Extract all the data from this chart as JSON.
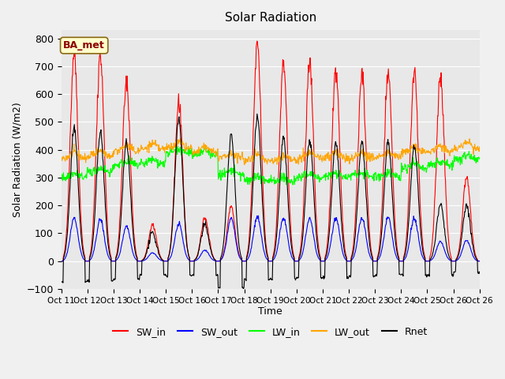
{
  "title": "Solar Radiation",
  "ylabel": "Solar Radiation (W/m2)",
  "xlabel": "Time",
  "ylim": [
    -100,
    830
  ],
  "bg_color": "#e8e8e8",
  "fig_bg": "#f0f0f0",
  "legend_items": [
    "SW_in",
    "SW_out",
    "LW_in",
    "LW_out",
    "Rnet"
  ],
  "legend_colors": [
    "#ff0000",
    "#0000ff",
    "#00ff00",
    "#ffa500",
    "#000000"
  ],
  "annotation": "BA_met",
  "xtick_labels": [
    "Oct 11",
    "Oct 12",
    "Oct 13",
    "Oct 14",
    "Oct 15",
    "Oct 16",
    "Oct 17",
    "Oct 18",
    "Oct 19",
    "Oct 20",
    "Oct 21",
    "Oct 22",
    "Oct 23",
    "Oct 24",
    "Oct 25",
    "Oct 26"
  ],
  "n_days": 16,
  "pts_per_day": 60,
  "sw_in_peaks": [
    750,
    735,
    645,
    130,
    565,
    155,
    195,
    775,
    710,
    705,
    695,
    675,
    680,
    675,
    660,
    300
  ],
  "sw_out_peaks": [
    155,
    150,
    125,
    30,
    135,
    40,
    155,
    160,
    155,
    155,
    155,
    155,
    155,
    155,
    70,
    75
  ],
  "lw_in_base": [
    300,
    320,
    345,
    350,
    390,
    380,
    310,
    290,
    285,
    300,
    305,
    305,
    305,
    335,
    345,
    365
  ],
  "lw_out_base": [
    370,
    380,
    395,
    400,
    405,
    390,
    370,
    360,
    360,
    370,
    370,
    370,
    375,
    390,
    395,
    405
  ],
  "rnet_peaks": [
    480,
    465,
    425,
    100,
    510,
    130,
    450,
    520,
    445,
    435,
    425,
    425,
    430,
    415,
    200,
    200
  ],
  "rnet_night": [
    -75,
    -70,
    -65,
    -50,
    -55,
    -50,
    -95,
    -65,
    -65,
    -60,
    -60,
    -55,
    -50,
    -50,
    -50,
    -40
  ]
}
